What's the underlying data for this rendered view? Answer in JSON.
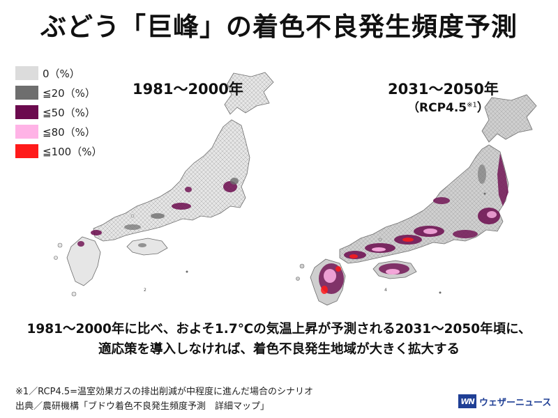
{
  "title": "ぶどう「巨峰」の着色不良発生頻度予測",
  "legend": [
    {
      "label": "0（%）",
      "color": "#dcdcdc"
    },
    {
      "label": "≦20（%）",
      "color": "#6e6e6e"
    },
    {
      "label": "≦50（%）",
      "color": "#6b0a4e"
    },
    {
      "label": "≦80（%）",
      "color": "#ffb3e6"
    },
    {
      "label": "≦100（%）",
      "color": "#ff1a1a"
    }
  ],
  "maps": {
    "left": {
      "period": "1981〜2000年",
      "page_no": "2"
    },
    "right": {
      "period": "2031〜2050年",
      "scenario": "（RCP4.5",
      "scenario_note": "※1",
      "scenario_close": "）",
      "page_no": "4"
    }
  },
  "caption": {
    "line1": "1981〜2000年に比べ、およそ1.7℃の気温上昇が予測される2031〜2050年頃に、",
    "line2": "適応策を導入しなければ、着色不良発生地域が大きく拡大する"
  },
  "footnotes": {
    "note1": "※1／RCP4.5=温室効果ガスの排出削減が中程度に進んだ場合のシナリオ",
    "source": "出典／農研機構「ブドウ着色不良発生頻度予測　詳細マップ」"
  },
  "brand": {
    "logo": "WN",
    "name": "ウェザーニュース"
  },
  "colors": {
    "land": "#e6e6e6",
    "border": "#6a6a6a",
    "low": "#6e6e6e",
    "mid": "#6b0a4e",
    "high": "#ffb3e6",
    "max": "#ff1a1a"
  }
}
